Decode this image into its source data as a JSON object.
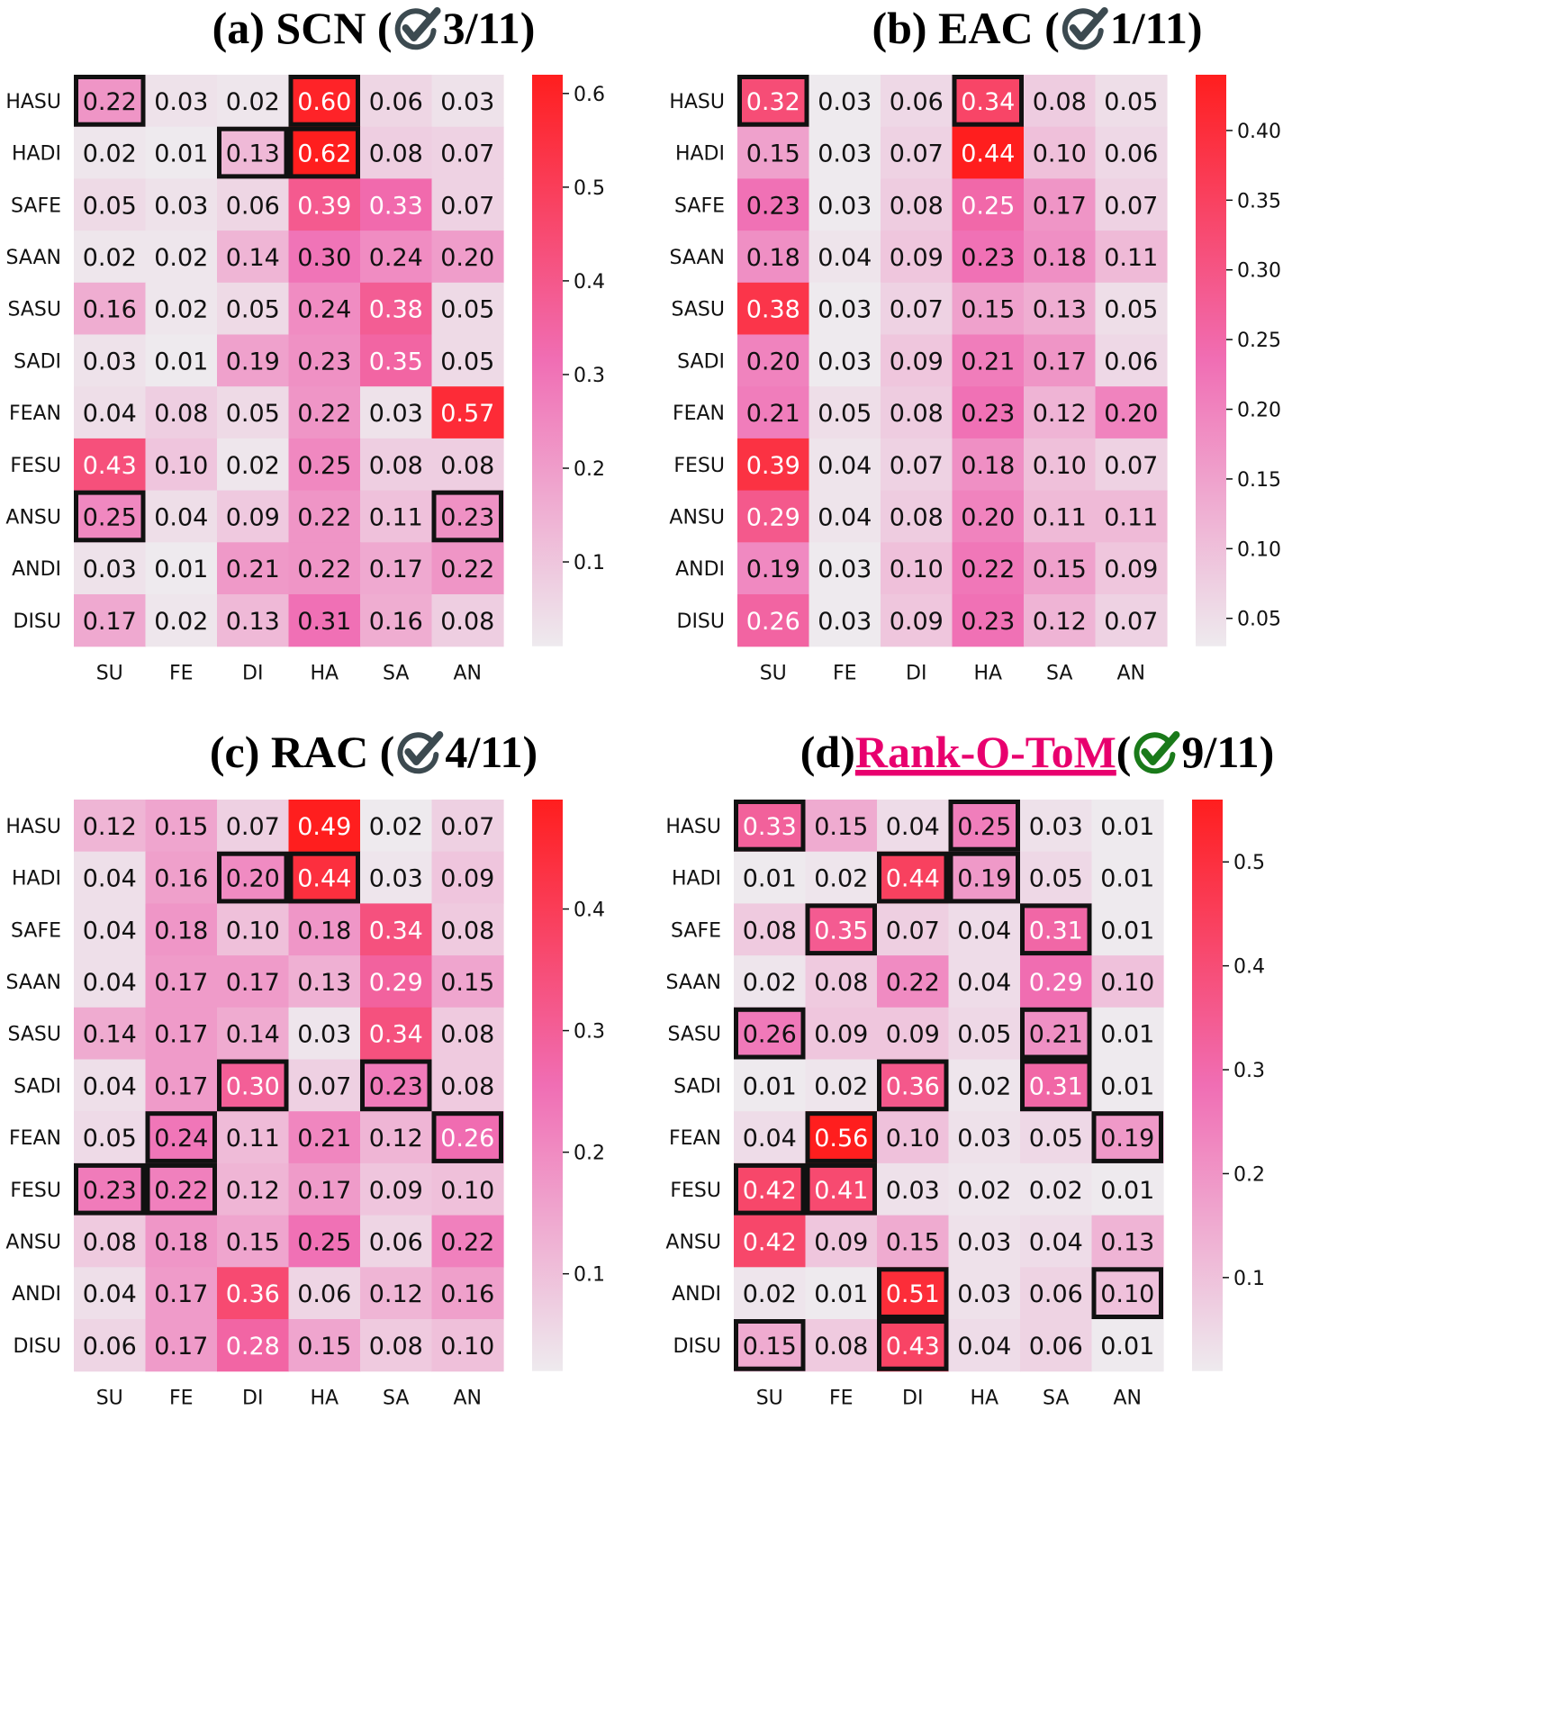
{
  "colors": {
    "low": "#eeeaee",
    "mid": "#f06eb4",
    "high": "#ff1e1e",
    "box": "#111111",
    "check_gray": "#3c4a50",
    "check_green": "#1a7a1a",
    "title_link": "#e8006e"
  },
  "panels": [
    {
      "id": "a",
      "title_prefix": "(a) SCN (",
      "title_highlight": "",
      "title_after": "",
      "score": "3/11",
      "title_suffix": ")",
      "check_icon": "gray-check-icon"
    },
    {
      "id": "b",
      "title_prefix": "(b) EAC (",
      "title_highlight": "",
      "title_after": "",
      "score": "1/11",
      "title_suffix": ")",
      "check_icon": "gray-check-icon"
    },
    {
      "id": "c",
      "title_prefix": "(c) RAC (",
      "title_highlight": "",
      "title_after": "",
      "score": "4/11",
      "title_suffix": ")",
      "check_icon": "gray-check-icon"
    },
    {
      "id": "d",
      "title_prefix": "(d) ",
      "title_highlight": "Rank-O-ToM",
      "title_after": " (",
      "score": "9/11",
      "title_suffix": ")",
      "check_icon": "green-check-icon"
    }
  ],
  "chart_data": [
    {
      "type": "heatmap",
      "title": "(a) SCN (3/11)",
      "x": [
        "SU",
        "FE",
        "DI",
        "HA",
        "SA",
        "AN"
      ],
      "y": [
        "HASU",
        "HADI",
        "SAFE",
        "SAAN",
        "SASU",
        "SADI",
        "FEAN",
        "FESU",
        "ANSU",
        "ANDI",
        "DISU"
      ],
      "values": [
        [
          "0.22",
          "0.03",
          "0.02",
          "0.60",
          "0.06",
          "0.03"
        ],
        [
          "0.02",
          "0.01",
          "0.13",
          "0.62",
          "0.08",
          "0.07"
        ],
        [
          "0.05",
          "0.03",
          "0.06",
          "0.39",
          "0.33",
          "0.07"
        ],
        [
          "0.02",
          "0.02",
          "0.14",
          "0.30",
          "0.24",
          "0.20"
        ],
        [
          "0.16",
          "0.02",
          "0.05",
          "0.24",
          "0.38",
          "0.05"
        ],
        [
          "0.03",
          "0.01",
          "0.19",
          "0.23",
          "0.35",
          "0.05"
        ],
        [
          "0.04",
          "0.08",
          "0.05",
          "0.22",
          "0.03",
          "0.57"
        ],
        [
          "0.43",
          "0.10",
          "0.02",
          "0.25",
          "0.08",
          "0.08"
        ],
        [
          "0.25",
          "0.04",
          "0.09",
          "0.22",
          "0.11",
          "0.23"
        ],
        [
          "0.03",
          "0.01",
          "0.21",
          "0.22",
          "0.17",
          "0.22"
        ],
        [
          "0.17",
          "0.02",
          "0.13",
          "0.31",
          "0.16",
          "0.08"
        ]
      ],
      "highlighted": [
        [
          0,
          0
        ],
        [
          0,
          3
        ],
        [
          1,
          2
        ],
        [
          1,
          3
        ],
        [
          8,
          0
        ],
        [
          8,
          5
        ]
      ],
      "colorbar": {
        "range": [
          0.01,
          0.62
        ],
        "ticks": [
          "0.1",
          "0.2",
          "0.3",
          "0.4",
          "0.5",
          "0.6"
        ]
      }
    },
    {
      "type": "heatmap",
      "title": "(b) EAC (1/11)",
      "x": [
        "SU",
        "FE",
        "DI",
        "HA",
        "SA",
        "AN"
      ],
      "y": [
        "HASU",
        "HADI",
        "SAFE",
        "SAAN",
        "SASU",
        "SADI",
        "FEAN",
        "FESU",
        "ANSU",
        "ANDI",
        "DISU"
      ],
      "values": [
        [
          "0.32",
          "0.03",
          "0.06",
          "0.34",
          "0.08",
          "0.05"
        ],
        [
          "0.15",
          "0.03",
          "0.07",
          "0.44",
          "0.10",
          "0.06"
        ],
        [
          "0.23",
          "0.03",
          "0.08",
          "0.25",
          "0.17",
          "0.07"
        ],
        [
          "0.18",
          "0.04",
          "0.09",
          "0.23",
          "0.18",
          "0.11"
        ],
        [
          "0.38",
          "0.03",
          "0.07",
          "0.15",
          "0.13",
          "0.05"
        ],
        [
          "0.20",
          "0.03",
          "0.09",
          "0.21",
          "0.17",
          "0.06"
        ],
        [
          "0.21",
          "0.05",
          "0.08",
          "0.23",
          "0.12",
          "0.20"
        ],
        [
          "0.39",
          "0.04",
          "0.07",
          "0.18",
          "0.10",
          "0.07"
        ],
        [
          "0.29",
          "0.04",
          "0.08",
          "0.20",
          "0.11",
          "0.11"
        ],
        [
          "0.19",
          "0.03",
          "0.10",
          "0.22",
          "0.15",
          "0.09"
        ],
        [
          "0.26",
          "0.03",
          "0.09",
          "0.23",
          "0.12",
          "0.07"
        ]
      ],
      "highlighted": [
        [
          0,
          0
        ],
        [
          0,
          3
        ]
      ],
      "colorbar": {
        "range": [
          0.03,
          0.44
        ],
        "ticks": [
          "0.05",
          "0.10",
          "0.15",
          "0.20",
          "0.25",
          "0.30",
          "0.35",
          "0.40"
        ]
      }
    },
    {
      "type": "heatmap",
      "title": "(c) RAC (4/11)",
      "x": [
        "SU",
        "FE",
        "DI",
        "HA",
        "SA",
        "AN"
      ],
      "y": [
        "HASU",
        "HADI",
        "SAFE",
        "SAAN",
        "SASU",
        "SADI",
        "FEAN",
        "FESU",
        "ANSU",
        "ANDI",
        "DISU"
      ],
      "values": [
        [
          "0.12",
          "0.15",
          "0.07",
          "0.49",
          "0.02",
          "0.07"
        ],
        [
          "0.04",
          "0.16",
          "0.20",
          "0.44",
          "0.03",
          "0.09"
        ],
        [
          "0.04",
          "0.18",
          "0.10",
          "0.18",
          "0.34",
          "0.08"
        ],
        [
          "0.04",
          "0.17",
          "0.17",
          "0.13",
          "0.29",
          "0.15"
        ],
        [
          "0.14",
          "0.17",
          "0.14",
          "0.03",
          "0.34",
          "0.08"
        ],
        [
          "0.04",
          "0.17",
          "0.30",
          "0.07",
          "0.23",
          "0.08"
        ],
        [
          "0.05",
          "0.24",
          "0.11",
          "0.21",
          "0.12",
          "0.26"
        ],
        [
          "0.23",
          "0.22",
          "0.12",
          "0.17",
          "0.09",
          "0.10"
        ],
        [
          "0.08",
          "0.18",
          "0.15",
          "0.25",
          "0.06",
          "0.22"
        ],
        [
          "0.04",
          "0.17",
          "0.36",
          "0.06",
          "0.12",
          "0.16"
        ],
        [
          "0.06",
          "0.17",
          "0.28",
          "0.15",
          "0.08",
          "0.10"
        ]
      ],
      "highlighted": [
        [
          1,
          2
        ],
        [
          1,
          3
        ],
        [
          5,
          2
        ],
        [
          5,
          4
        ],
        [
          6,
          1
        ],
        [
          6,
          5
        ],
        [
          7,
          0
        ],
        [
          7,
          1
        ]
      ],
      "colorbar": {
        "range": [
          0.02,
          0.49
        ],
        "ticks": [
          "0.1",
          "0.2",
          "0.3",
          "0.4"
        ]
      }
    },
    {
      "type": "heatmap",
      "title": "(d) Rank-O-ToM (9/11)",
      "x": [
        "SU",
        "FE",
        "DI",
        "HA",
        "SA",
        "AN"
      ],
      "y": [
        "HASU",
        "HADI",
        "SAFE",
        "SAAN",
        "SASU",
        "SADI",
        "FEAN",
        "FESU",
        "ANSU",
        "ANDI",
        "DISU"
      ],
      "values": [
        [
          "0.33",
          "0.15",
          "0.04",
          "0.25",
          "0.03",
          "0.01"
        ],
        [
          "0.01",
          "0.02",
          "0.44",
          "0.19",
          "0.05",
          "0.01"
        ],
        [
          "0.08",
          "0.35",
          "0.07",
          "0.04",
          "0.31",
          "0.01"
        ],
        [
          "0.02",
          "0.08",
          "0.22",
          "0.04",
          "0.29",
          "0.10"
        ],
        [
          "0.26",
          "0.09",
          "0.09",
          "0.05",
          "0.21",
          "0.01"
        ],
        [
          "0.01",
          "0.02",
          "0.36",
          "0.02",
          "0.31",
          "0.01"
        ],
        [
          "0.04",
          "0.56",
          "0.10",
          "0.03",
          "0.05",
          "0.19"
        ],
        [
          "0.42",
          "0.41",
          "0.03",
          "0.02",
          "0.02",
          "0.01"
        ],
        [
          "0.42",
          "0.09",
          "0.15",
          "0.03",
          "0.04",
          "0.13"
        ],
        [
          "0.02",
          "0.01",
          "0.51",
          "0.03",
          "0.06",
          "0.10"
        ],
        [
          "0.15",
          "0.08",
          "0.43",
          "0.04",
          "0.06",
          "0.01"
        ]
      ],
      "highlighted": [
        [
          0,
          0
        ],
        [
          0,
          3
        ],
        [
          1,
          2
        ],
        [
          1,
          3
        ],
        [
          2,
          1
        ],
        [
          2,
          4
        ],
        [
          4,
          0
        ],
        [
          4,
          4
        ],
        [
          5,
          2
        ],
        [
          5,
          4
        ],
        [
          6,
          1
        ],
        [
          6,
          5
        ],
        [
          7,
          0
        ],
        [
          7,
          1
        ],
        [
          9,
          2
        ],
        [
          9,
          5
        ],
        [
          10,
          0
        ],
        [
          10,
          2
        ]
      ],
      "colorbar": {
        "range": [
          0.01,
          0.56
        ],
        "ticks": [
          "0.1",
          "0.2",
          "0.3",
          "0.4",
          "0.5"
        ]
      }
    }
  ]
}
